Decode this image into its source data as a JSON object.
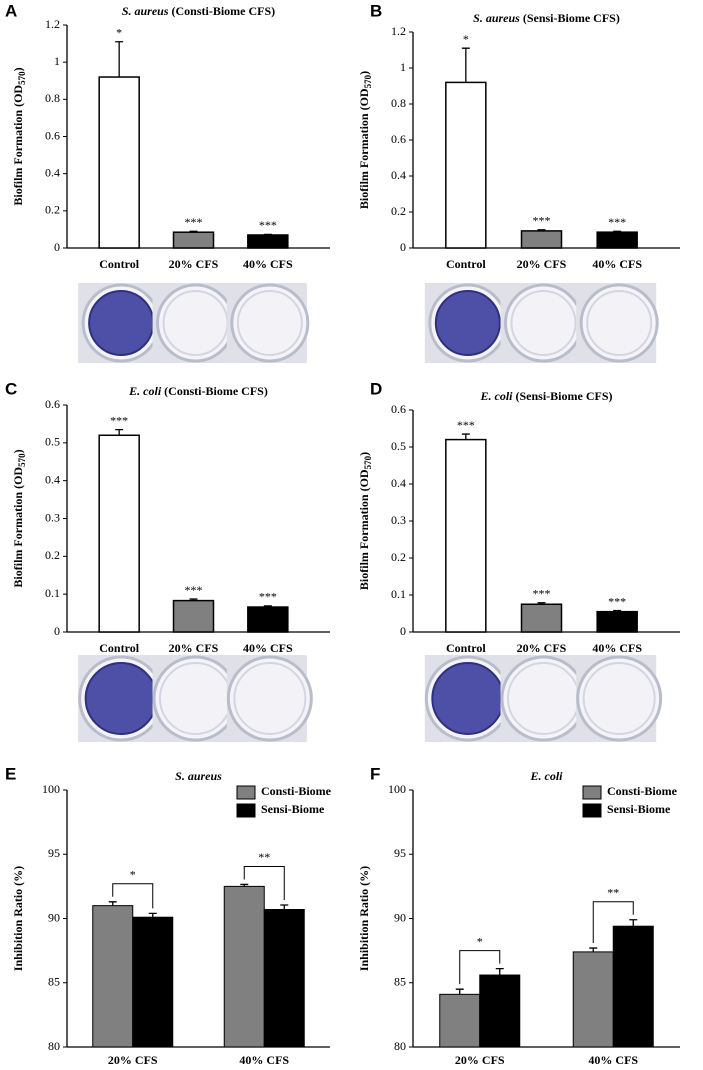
{
  "chart_data": [
    {
      "type": "bar",
      "panel": "A",
      "title_italic": "S. aureus",
      "title": "(Consti-Biome CFS)",
      "ylabel": [
        "Biofilm Formation (OD",
        "570",
        ")"
      ],
      "categories": [
        "Control",
        "20% CFS",
        "40% CFS"
      ],
      "values": [
        0.92,
        0.085,
        0.07
      ],
      "errors": [
        0.19,
        0.005,
        0.003
      ],
      "colors": [
        "#ffffff",
        "#808080",
        "#000000"
      ],
      "significance": [
        "*",
        "***",
        "***"
      ],
      "ylim": [
        0,
        1.2
      ],
      "yticks": [
        0,
        0.2,
        0.4,
        0.6,
        0.8,
        1,
        1.2
      ]
    },
    {
      "type": "bar",
      "panel": "B",
      "title_italic": "S. aureus",
      "title": "(Sensi-Biome CFS)",
      "ylabel": [
        "Biofilm Formation (OD",
        "570",
        ")"
      ],
      "categories": [
        "Control",
        "20% CFS",
        "40% CFS"
      ],
      "values": [
        0.92,
        0.095,
        0.088
      ],
      "errors": [
        0.19,
        0.006,
        0.005
      ],
      "colors": [
        "#ffffff",
        "#808080",
        "#000000"
      ],
      "significance": [
        "*",
        "***",
        "***"
      ],
      "ylim": [
        0,
        1.2
      ],
      "yticks": [
        0,
        0.2,
        0.4,
        0.6,
        0.8,
        1,
        1.2
      ]
    },
    {
      "type": "bar",
      "panel": "C",
      "title_italic": "E. coli",
      "title": "(Consti-Biome CFS)",
      "ylabel": [
        "Biofilm Formation (OD",
        "570",
        ")"
      ],
      "categories": [
        "Control",
        "20% CFS",
        "40% CFS"
      ],
      "values": [
        0.52,
        0.083,
        0.066
      ],
      "errors": [
        0.015,
        0.004,
        0.003
      ],
      "colors": [
        "#ffffff",
        "#808080",
        "#000000"
      ],
      "significance": [
        "***",
        "***",
        "***"
      ],
      "ylim": [
        0,
        0.6
      ],
      "yticks": [
        0,
        0.1,
        0.2,
        0.3,
        0.4,
        0.5,
        0.6
      ]
    },
    {
      "type": "bar",
      "panel": "D",
      "title_italic": "E. coli",
      "title": "(Sensi-Biome CFS)",
      "ylabel": [
        "Biofilm Formation (OD",
        "570",
        ")"
      ],
      "categories": [
        "Control",
        "20% CFS",
        "40% CFS"
      ],
      "values": [
        0.52,
        0.075,
        0.055
      ],
      "errors": [
        0.015,
        0.004,
        0.003
      ],
      "colors": [
        "#ffffff",
        "#808080",
        "#000000"
      ],
      "significance": [
        "***",
        "***",
        "***"
      ],
      "ylim": [
        0,
        0.6
      ],
      "yticks": [
        0,
        0.1,
        0.2,
        0.3,
        0.4,
        0.5,
        0.6
      ]
    },
    {
      "type": "grouped_bar",
      "panel": "E",
      "title_italic": "S. aureus",
      "ylabel": [
        "Inhibition Ratio (%)"
      ],
      "categories": [
        "20% CFS",
        "40% CFS"
      ],
      "series": [
        {
          "name": "Consti-Biome",
          "color": "#808080",
          "values": [
            91.0,
            92.5
          ],
          "errors": [
            0.3,
            0.15
          ]
        },
        {
          "name": "Sensi-Biome",
          "color": "#000000",
          "values": [
            90.1,
            90.7
          ],
          "errors": [
            0.3,
            0.35
          ]
        }
      ],
      "significance": [
        "*",
        "**"
      ],
      "ylim": [
        80,
        100
      ],
      "yticks": [
        80,
        85,
        90,
        95,
        100
      ]
    },
    {
      "type": "grouped_bar",
      "panel": "F",
      "title_italic": "E. coli",
      "ylabel": [
        "Inhibition Ratio (%)"
      ],
      "categories": [
        "20% CFS",
        "40% CFS"
      ],
      "series": [
        {
          "name": "Consti-Biome",
          "color": "#808080",
          "values": [
            84.1,
            87.4
          ],
          "errors": [
            0.4,
            0.3
          ]
        },
        {
          "name": "Sensi-Biome",
          "color": "#000000",
          "values": [
            85.6,
            89.4
          ],
          "errors": [
            0.5,
            0.5
          ]
        }
      ],
      "significance": [
        "*",
        "**"
      ],
      "ylim": [
        80,
        100
      ],
      "yticks": [
        80,
        85,
        90,
        95,
        100
      ]
    }
  ]
}
